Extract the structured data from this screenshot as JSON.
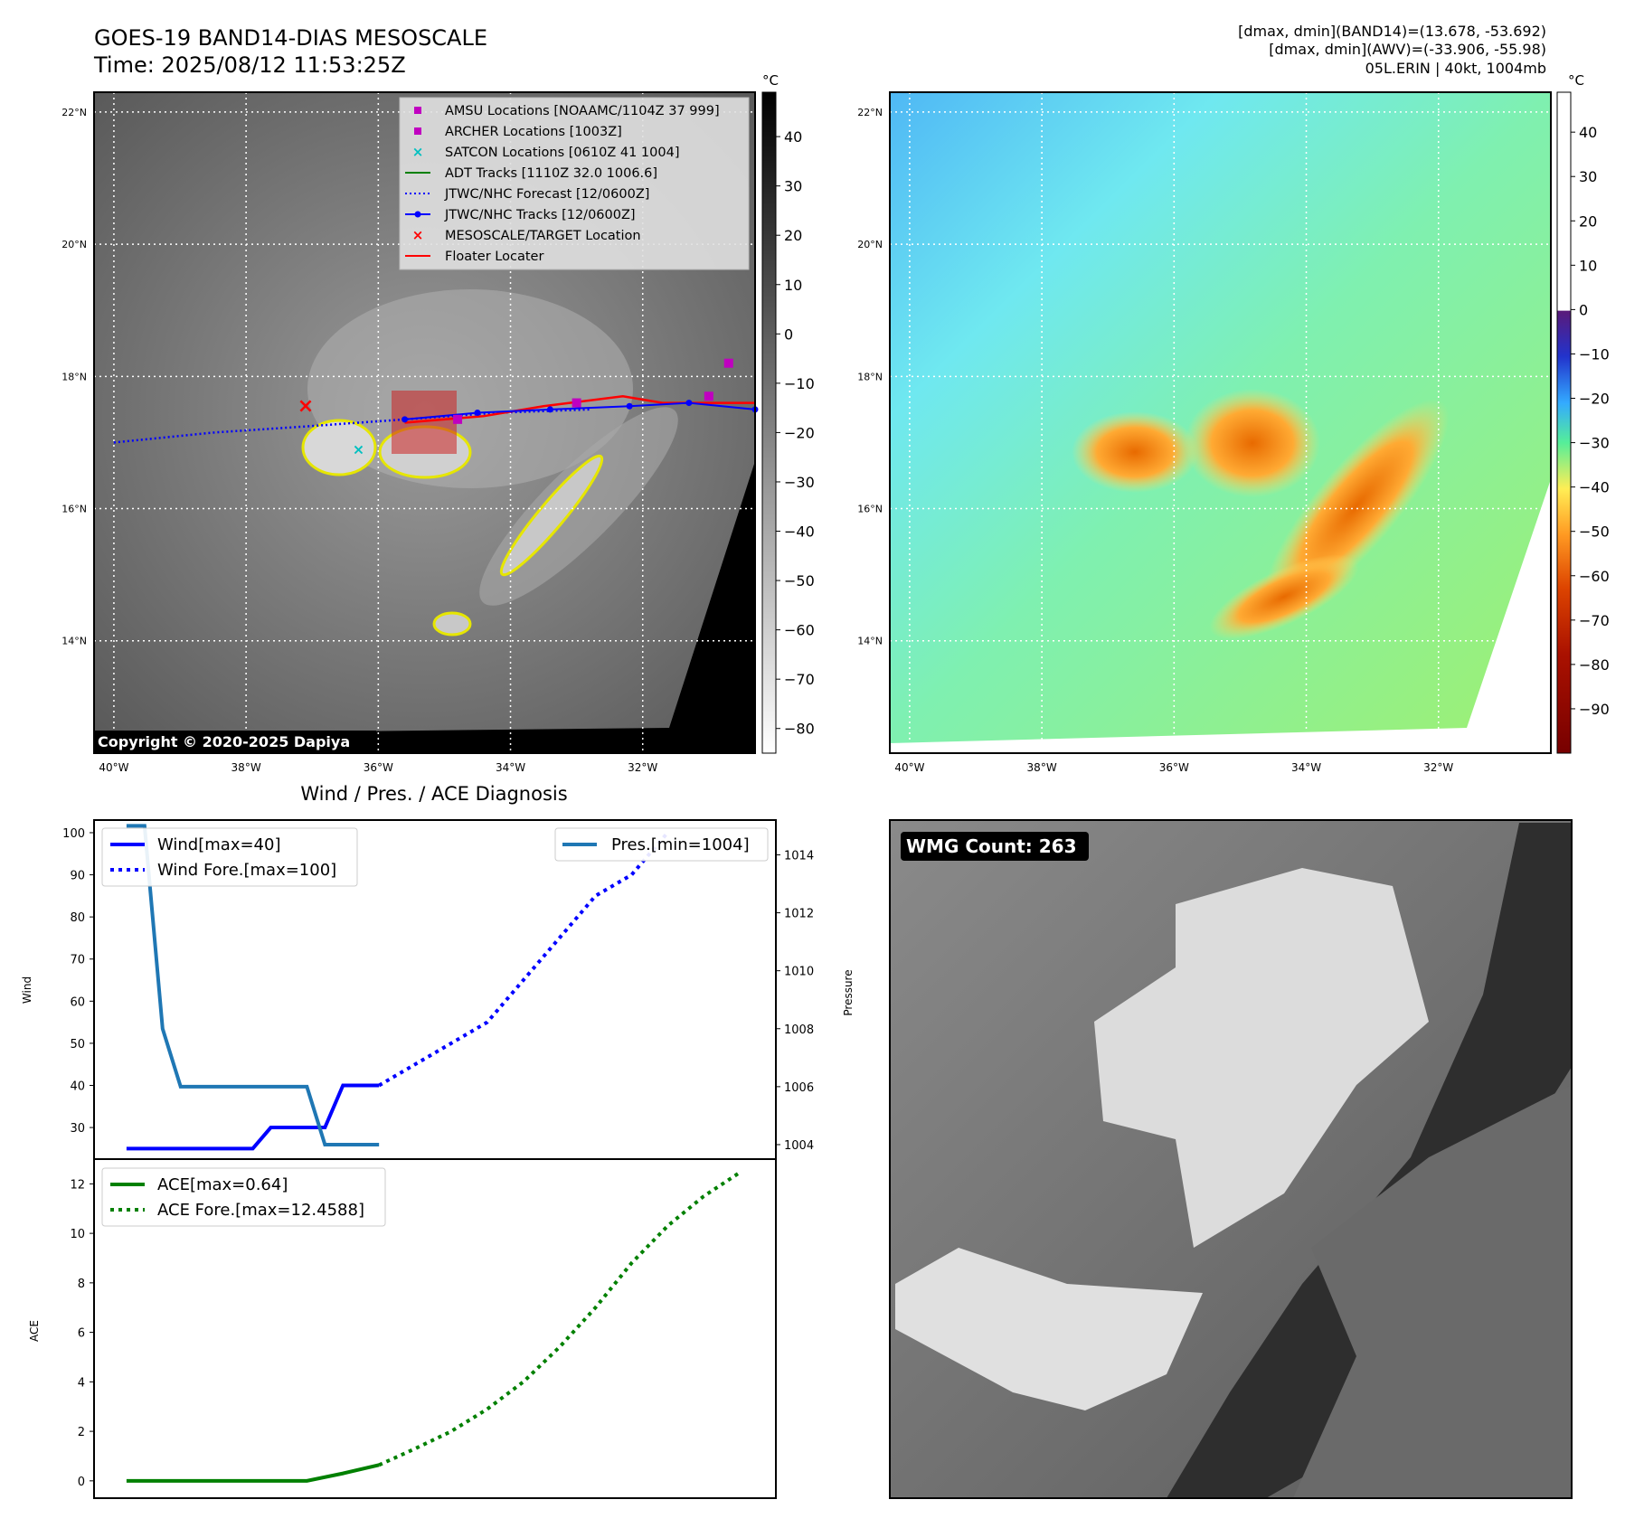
{
  "header": {
    "title_line1": "GOES-19 BAND14-DIAS MESOSCALE",
    "title_line2": "Time: 2025/08/12 11:53:25Z",
    "stats_line1": "[dmax, dmin](BAND14)=(13.678, -53.692)",
    "stats_line2": "[dmax, dmin](AWV)=(-33.906, -55.98)",
    "stats_line3": "05L.ERIN | 40kt, 1004mb"
  },
  "map_axes": {
    "lat_labels": [
      "22°N",
      "20°N",
      "18°N",
      "16°N",
      "14°N"
    ],
    "lon_labels": [
      "40°W",
      "38°W",
      "36°W",
      "34°W",
      "32°W"
    ],
    "lat_values": [
      22,
      20,
      18,
      16,
      14
    ],
    "lon_values": [
      -40,
      -38,
      -36,
      -34,
      -32
    ],
    "extent": {
      "lon_min": -40.3,
      "lon_max": -30.3,
      "lat_min": 12.3,
      "lat_max": 22.3
    }
  },
  "ir_panel": {
    "copyright": "Copyright © 2020-2025 Dapiya",
    "colorbar_unit": "°C",
    "colorbar_ticks": [
      40,
      30,
      20,
      10,
      0,
      -10,
      -20,
      -30,
      -40,
      -50,
      -60,
      -70,
      -80
    ],
    "colorbar_tick_labels": [
      "40",
      "30",
      "20",
      "10",
      "0",
      "−10",
      "−20",
      "−30",
      "−40",
      "−50",
      "−60",
      "−70",
      "−80"
    ],
    "colorbar_range": [
      -85,
      49
    ],
    "legend": [
      {
        "label": "AMSU Locations [NOAAMC/1104Z 37 999]",
        "marker": "square",
        "color": "#c000c0"
      },
      {
        "label": "ARCHER Locations [1003Z]",
        "marker": "square",
        "color": "#c000c0"
      },
      {
        "label": "SATCON Locations [0610Z 41 1004]",
        "marker": "x",
        "color": "#00c0c0"
      },
      {
        "label": "ADT Tracks [1110Z 32.0 1006.6]",
        "marker": "line",
        "color": "#008000"
      },
      {
        "label": "JTWC/NHC Forecast [12/0600Z]",
        "marker": "dotted",
        "color": "#0000ff"
      },
      {
        "label": "JTWC/NHC Tracks [12/0600Z]",
        "marker": "line-dot",
        "color": "#0000ff"
      },
      {
        "label": "MESOSCALE/TARGET Location",
        "marker": "x",
        "color": "#ff0000"
      },
      {
        "label": "Floater Locater",
        "marker": "line",
        "color": "#ff0000"
      }
    ],
    "forecast_track": [
      [
        -40.0,
        17.0
      ],
      [
        -38.5,
        17.15
      ],
      [
        -37.0,
        17.25
      ],
      [
        -35.6,
        17.35
      ],
      [
        -34.2,
        17.45
      ],
      [
        -32.8,
        17.5
      ]
    ],
    "best_track": [
      [
        -35.6,
        17.35
      ],
      [
        -34.5,
        17.45
      ],
      [
        -33.4,
        17.5
      ],
      [
        -32.2,
        17.55
      ],
      [
        -31.3,
        17.6
      ],
      [
        -30.3,
        17.5
      ]
    ],
    "floater_track": [
      [
        -35.6,
        17.3
      ],
      [
        -34.4,
        17.4
      ],
      [
        -33.5,
        17.55
      ],
      [
        -32.3,
        17.7
      ],
      [
        -31.7,
        17.6
      ],
      [
        -30.3,
        17.6
      ]
    ],
    "mesoscale_target": [
      -37.1,
      17.55
    ],
    "amsu_location": [
      -30.7,
      18.2
    ],
    "archer_locations": [
      [
        -34.8,
        17.35
      ],
      [
        -33.0,
        17.6
      ],
      [
        -31.0,
        17.7
      ]
    ],
    "satcon_location": [
      -36.3,
      16.9
    ]
  },
  "wv_panel": {
    "colorbar_unit": "°C",
    "colorbar_ticks": [
      40,
      30,
      20,
      10,
      0,
      -10,
      -20,
      -30,
      -40,
      -50,
      -60,
      -70,
      -80,
      -90
    ],
    "colorbar_tick_labels": [
      "40",
      "30",
      "20",
      "10",
      "0",
      "−10",
      "−20",
      "−30",
      "−40",
      "−50",
      "−60",
      "−70",
      "−80",
      "−90"
    ],
    "colorbar_range": [
      -100,
      49
    ]
  },
  "diagnosis": {
    "title": "Wind / Pres. / ACE Diagnosis",
    "wind_ylabel": "Wind",
    "pressure_ylabel": "Pressure",
    "ace_ylabel": "ACE"
  },
  "chart_data": [
    {
      "type": "line",
      "title": "Wind / Pres. / ACE Diagnosis",
      "x": [
        0,
        1,
        2,
        3,
        4,
        5,
        6,
        7,
        8,
        9,
        10,
        11,
        12,
        13,
        14,
        15,
        16,
        17,
        18,
        19,
        20,
        21,
        22,
        23,
        24,
        25,
        26,
        27,
        28,
        29,
        30,
        31,
        32,
        33,
        34
      ],
      "ylabel": "Wind",
      "ylim": [
        22.5,
        103
      ],
      "yticks": [
        30,
        40,
        50,
        60,
        70,
        80,
        90,
        100
      ],
      "y2label": "Pressure",
      "y2lim": [
        1003.5,
        1015.2
      ],
      "y2ticks": [
        1004,
        1006,
        1008,
        1010,
        1012,
        1014
      ],
      "legend_left": [
        "Wind[max=40]",
        "Wind Fore.[max=100]"
      ],
      "legend_right": [
        "Pres.[min=1004]"
      ],
      "series": [
        {
          "name": "Wind[max=40]",
          "style": "solid",
          "color": "#0000ff",
          "axis": "left",
          "x": [
            0,
            1,
            2,
            3,
            4,
            5,
            6,
            7,
            8,
            9,
            10,
            11,
            12,
            13,
            14
          ],
          "values": [
            25,
            25,
            25,
            25,
            25,
            25,
            25,
            25,
            30,
            30,
            30,
            30,
            40,
            40,
            40
          ]
        },
        {
          "name": "Wind Fore.[max=100]",
          "style": "dotted",
          "color": "#0000ff",
          "axis": "left",
          "x": [
            14,
            16,
            18,
            20,
            22,
            24,
            26,
            28,
            30
          ],
          "values": [
            40,
            45,
            50,
            55,
            65,
            75,
            85,
            90,
            100
          ]
        },
        {
          "name": "Pres.[min=1004]",
          "style": "solid",
          "color": "#1f77b4",
          "axis": "right",
          "x": [
            0,
            1,
            2,
            3,
            4,
            5,
            6,
            7,
            8,
            9,
            10,
            11,
            12,
            13,
            14
          ],
          "values": [
            1015,
            1015,
            1008,
            1006,
            1006,
            1006,
            1006,
            1006,
            1006,
            1006,
            1006,
            1004,
            1004,
            1004,
            1004
          ]
        }
      ]
    },
    {
      "type": "line",
      "ylabel": "ACE",
      "ylim": [
        -0.7,
        13.0
      ],
      "yticks": [
        0,
        2,
        4,
        6,
        8,
        10,
        12
      ],
      "legend": [
        "ACE[max=0.64]",
        "ACE Fore.[max=12.4588]"
      ],
      "series": [
        {
          "name": "ACE[max=0.64]",
          "style": "solid",
          "color": "#008000",
          "x": [
            0,
            2,
            4,
            6,
            8,
            10,
            12,
            14
          ],
          "values": [
            0,
            0,
            0,
            0,
            0,
            0,
            0.3,
            0.64
          ]
        },
        {
          "name": "ACE Fore.[max=12.4588]",
          "style": "dotted",
          "color": "#008000",
          "x": [
            14,
            16,
            18,
            20,
            22,
            24,
            26,
            28,
            30,
            32,
            34
          ],
          "values": [
            0.64,
            1.3,
            2.0,
            2.9,
            4.0,
            5.4,
            7.0,
            8.8,
            10.3,
            11.5,
            12.4588
          ]
        }
      ]
    }
  ],
  "wmg_panel": {
    "badge": "WMG Count: 263"
  }
}
